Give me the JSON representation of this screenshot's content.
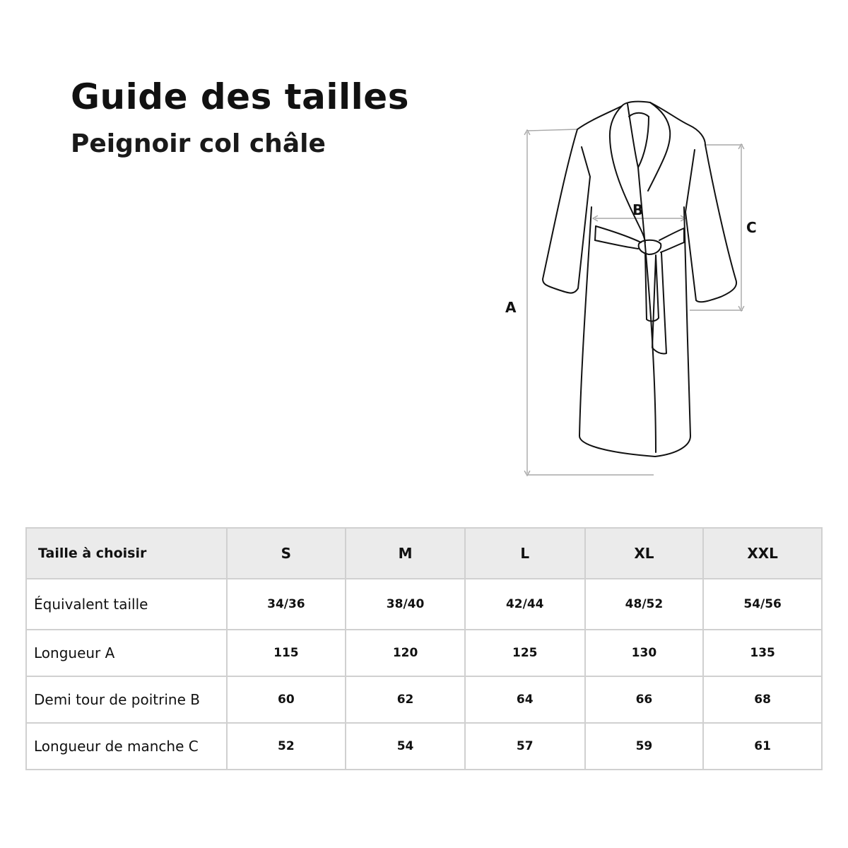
{
  "header": {
    "title": "Guide des tailles",
    "subtitle": "Peignoir col châle"
  },
  "diagram": {
    "labels": {
      "a": "A",
      "b": "B",
      "c": "C"
    },
    "line_color": "#111111",
    "dimension_color": "#a8a8a8"
  },
  "table": {
    "columns": [
      "Taille à choisir",
      "S",
      "M",
      "L",
      "XL",
      "XXL"
    ],
    "rows": [
      {
        "label": "Équivalent taille",
        "values": [
          "34/36",
          "38/40",
          "42/44",
          "48/52",
          "54/56"
        ]
      },
      {
        "label": "Longueur A",
        "values": [
          "115",
          "120",
          "125",
          "130",
          "135"
        ]
      },
      {
        "label": "Demi tour de poitrine B",
        "values": [
          "60",
          "62",
          "64",
          "66",
          "68"
        ]
      },
      {
        "label": "Longueur de manche C",
        "values": [
          "52",
          "54",
          "57",
          "59",
          "61"
        ]
      }
    ],
    "header_bg": "#ebebeb"
  }
}
